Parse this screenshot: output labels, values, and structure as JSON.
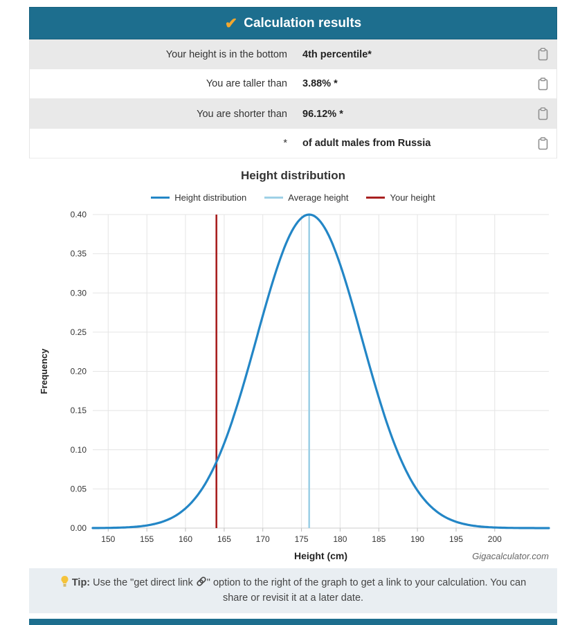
{
  "header": {
    "title": "Calculation results",
    "check_icon": "✔"
  },
  "results": {
    "rows": [
      {
        "label": "Your height is in the bottom",
        "value": "4th percentile*"
      },
      {
        "label": "You are taller than",
        "value": "3.88% *"
      },
      {
        "label": "You are shorter than",
        "value": "96.12% *"
      },
      {
        "label": "*",
        "value": "of adult males from Russia"
      }
    ]
  },
  "chart_data": {
    "type": "line",
    "title": "Height distribution",
    "xlabel": "Height (cm)",
    "ylabel": "Frequency",
    "xlim": [
      148,
      207
    ],
    "ylim": [
      0,
      0.4
    ],
    "x_ticks": [
      150,
      155,
      160,
      165,
      170,
      175,
      180,
      185,
      190,
      195,
      200
    ],
    "y_ticks": [
      0.0,
      0.05,
      0.1,
      0.15,
      0.2,
      0.25,
      0.3,
      0.35,
      0.4
    ],
    "series": [
      {
        "name": "Height distribution",
        "type": "gaussian",
        "mean": 176,
        "sd": 6.8,
        "peak": 0.4,
        "color": "#2386c6"
      },
      {
        "name": "Average height",
        "type": "vline",
        "x": 176,
        "color": "#9ed0e6"
      },
      {
        "name": "Your height",
        "type": "vline",
        "x": 164,
        "color": "#a82020"
      }
    ],
    "grid": true,
    "legend_position": "top",
    "watermark": "Gigacalculator.com"
  },
  "tip": {
    "label": "Tip:",
    "before": "Use the \"get direct link",
    "after": "\" option to the right of the graph to get a link to your calculation. You can share or revisit it at a later date."
  },
  "colors": {
    "header_bg": "#1d6e8e",
    "row_alt_bg": "#e9e9e9",
    "tip_bg": "#e9eef2",
    "check": "#f2a72e",
    "curve": "#2386c6",
    "average_line": "#9ed0e6",
    "your_height_line": "#a82020"
  }
}
